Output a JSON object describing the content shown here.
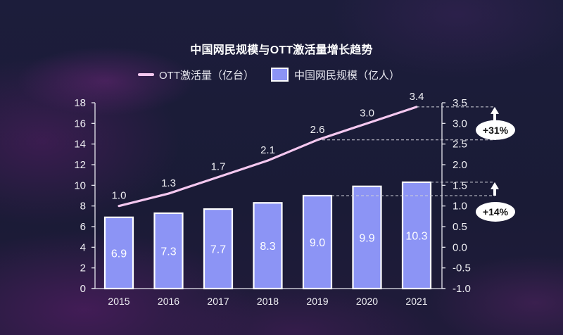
{
  "chart_data": {
    "type": "bar",
    "title": "中国网民规模与OTT激活量增长趋势",
    "xlabel": "",
    "ylabel": "",
    "grid": false,
    "categories": [
      "2015",
      "2016",
      "2017",
      "2018",
      "2019",
      "2020",
      "2021"
    ],
    "series": [
      {
        "name": "中国网民规模（亿人）",
        "type": "bar",
        "axis": "left",
        "color": "#8c94f5",
        "values": [
          6.9,
          7.3,
          7.7,
          8.3,
          9.0,
          9.9,
          10.3
        ],
        "labels": [
          "6.9",
          "7.3",
          "7.7",
          "8.3",
          "9.0",
          "9.9",
          "10.3"
        ]
      },
      {
        "name": "OTT激活量（亿台）",
        "type": "line",
        "axis": "right",
        "color": "#f5c8f0",
        "values": [
          1.0,
          1.3,
          1.7,
          2.1,
          2.6,
          3.0,
          3.4
        ],
        "labels": [
          "1.0",
          "1.3",
          "1.7",
          "2.1",
          "2.6",
          "3.0",
          "3.4"
        ]
      }
    ],
    "y_left": {
      "min": 0,
      "max": 18,
      "ticks": [
        0,
        2,
        4,
        6,
        8,
        10,
        12,
        14,
        16,
        18
      ],
      "tick_labels": [
        "0",
        "2",
        "4",
        "6",
        "8",
        "10",
        "12",
        "14",
        "16",
        "18"
      ]
    },
    "y_right": {
      "min": -1.0,
      "max": 3.5,
      "ticks": [
        -1.0,
        -0.5,
        0.0,
        0.5,
        1.0,
        1.5,
        2.0,
        2.5,
        3.0,
        3.5
      ],
      "tick_labels": [
        "-1.0",
        "-0.5",
        "0.0",
        "0.5",
        "1.0",
        "1.5",
        "2.0",
        "2.5",
        "3.0",
        "3.5"
      ]
    },
    "legend": {
      "position": "top",
      "items": [
        {
          "label": "OTT激活量（亿台）",
          "marker": "line",
          "color": "#f5c8f0"
        },
        {
          "label": "中国网民规模（亿人）",
          "marker": "box",
          "color": "#8c94f5"
        }
      ]
    },
    "annotations": [
      {
        "label": "+31%",
        "series_index": 1,
        "from_category": "2019",
        "to_category": "2021"
      },
      {
        "label": "+14%",
        "series_index": 0,
        "from_category": "2019",
        "to_category": "2021"
      }
    ]
  },
  "colors": {
    "background": "#1b1c39",
    "axis": "#e6e6ee",
    "text": "#f0f0f4",
    "annotation_badge": "#ffffff"
  }
}
